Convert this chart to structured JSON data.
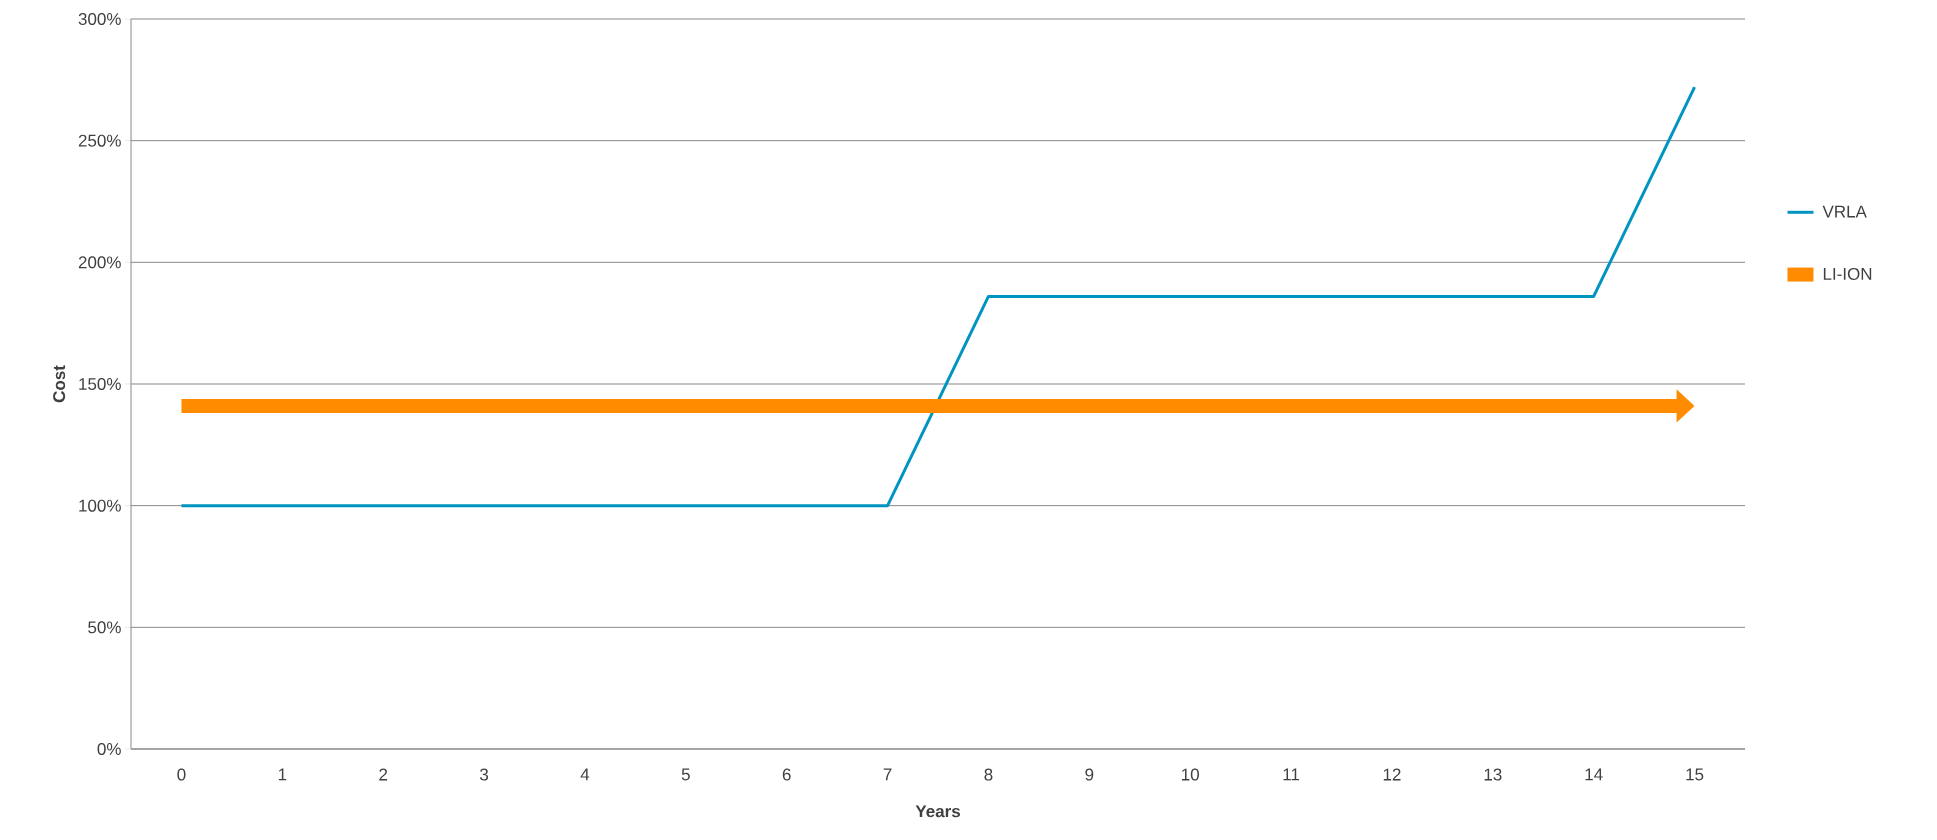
{
  "chart_data": {
    "type": "line",
    "xlabel": "Years",
    "ylabel": "Cost",
    "categories": [
      "0",
      "1",
      "2",
      "3",
      "4",
      "5",
      "6",
      "7",
      "8",
      "9",
      "10",
      "11",
      "12",
      "13",
      "14",
      "15"
    ],
    "series": [
      {
        "name": "VRLA",
        "color": "#0095c0",
        "values": [
          100,
          100,
          100,
          100,
          100,
          100,
          100,
          100,
          186,
          186,
          186,
          186,
          186,
          186,
          186,
          272
        ]
      },
      {
        "name": "LI-ION",
        "color": "#ff8c00",
        "values": [
          141,
          141,
          141,
          141,
          141,
          141,
          141,
          141,
          141,
          141,
          141,
          141,
          141,
          141,
          141,
          141
        ]
      }
    ],
    "ylim": [
      0,
      300
    ],
    "yticks": [
      {
        "value": 0,
        "label": "0%"
      },
      {
        "value": 50,
        "label": "50%"
      },
      {
        "value": 100,
        "label": "100%"
      },
      {
        "value": 150,
        "label": "150%"
      },
      {
        "value": 200,
        "label": "200%"
      },
      {
        "value": 250,
        "label": "250%"
      },
      {
        "value": 300,
        "label": "300%"
      }
    ],
    "grid": "y",
    "legend": "right",
    "marker": "none",
    "line_style": "solid"
  }
}
